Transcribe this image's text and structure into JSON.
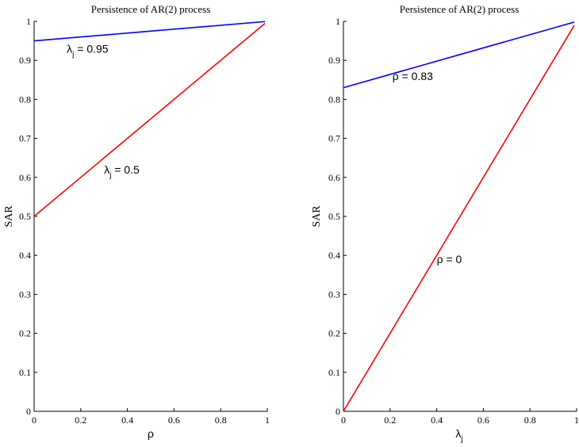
{
  "chart_data": [
    {
      "type": "line",
      "title": "Persistence of AR(2) process",
      "xlabel": "ρ",
      "ylabel": "SAR",
      "xlim": [
        0,
        1
      ],
      "ylim": [
        0,
        1
      ],
      "xticks": [
        "0",
        "0.2",
        "0.4",
        "0.6",
        "0.8",
        "1"
      ],
      "yticks": [
        "0",
        "0.1",
        "0.2",
        "0.3",
        "0.4",
        "0.5",
        "0.6",
        "0.7",
        "0.8",
        "0.9",
        "1"
      ],
      "series": [
        {
          "color": "#0000ff",
          "x": [
            0,
            0.99
          ],
          "y": [
            0.95,
            0.9995
          ]
        },
        {
          "color": "#ff0000",
          "x": [
            0,
            0.99
          ],
          "y": [
            0.5,
            0.995
          ]
        }
      ],
      "annotations": [
        {
          "sym": "λ",
          "sub": "j",
          "rest": " = 0.95",
          "x": 0.14,
          "y": 0.92
        },
        {
          "sym": "λ",
          "sub": "j",
          "rest": " = 0.5",
          "x": 0.3,
          "y": 0.61
        }
      ]
    },
    {
      "type": "line",
      "title": "Persistence of AR(2) process",
      "xlabel_sym": "λ",
      "xlabel_sub": "j",
      "ylabel": "SAR",
      "xlim": [
        0,
        1
      ],
      "ylim": [
        0,
        1
      ],
      "xticks": [
        "0",
        "0.2",
        "0.4",
        "0.6",
        "0.8",
        "1"
      ],
      "yticks": [
        "0",
        "0.1",
        "0.2",
        "0.3",
        "0.4",
        "0.5",
        "0.6",
        "0.7",
        "0.8",
        "0.9",
        "1"
      ],
      "series": [
        {
          "color": "#0000ff",
          "x": [
            0,
            0.99
          ],
          "y": [
            0.83,
            0.9983
          ]
        },
        {
          "color": "#ff0000",
          "x": [
            0,
            0.99
          ],
          "y": [
            0,
            0.99
          ]
        }
      ],
      "annotations": [
        {
          "sym": "",
          "sub": "",
          "rest": "ρ = 0.83",
          "x": 0.21,
          "y": 0.85
        },
        {
          "sym": "",
          "sub": "",
          "rest": "ρ = 0",
          "x": 0.4,
          "y": 0.38
        }
      ]
    }
  ]
}
